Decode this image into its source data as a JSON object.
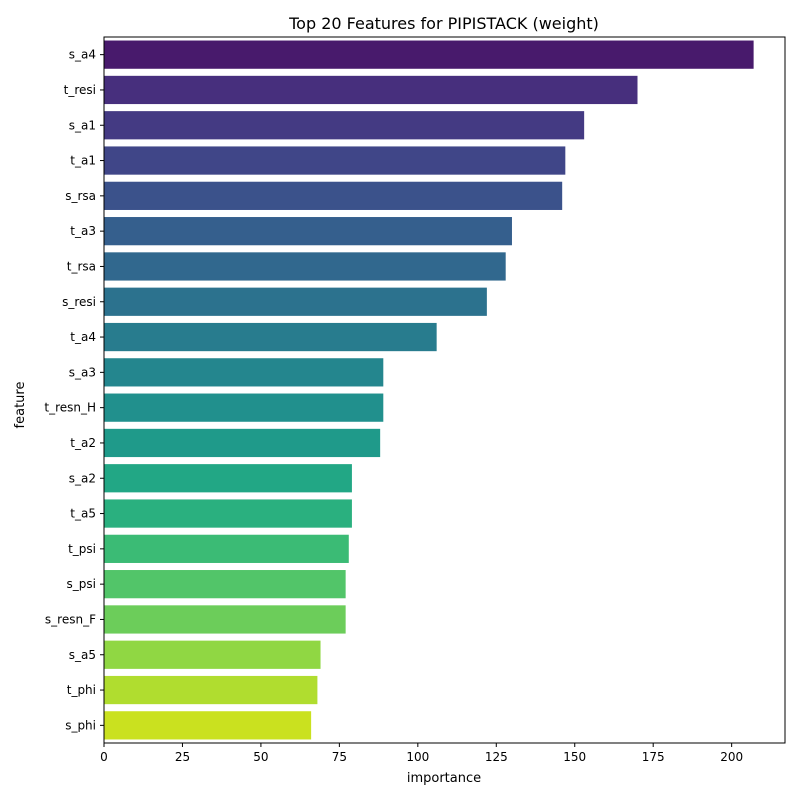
{
  "chart_data": {
    "type": "bar",
    "orientation": "horizontal",
    "title": "Top 20 Features for PIPISTACK (weight)",
    "xlabel": "importance",
    "ylabel": "feature",
    "xlim": [
      0,
      217
    ],
    "xticks": [
      0,
      25,
      50,
      75,
      100,
      125,
      150,
      175,
      200
    ],
    "grid": false,
    "categories": [
      "s_a4",
      "t_resi",
      "s_a1",
      "t_a1",
      "s_rsa",
      "t_a3",
      "t_rsa",
      "s_resi",
      "t_a4",
      "s_a3",
      "t_resn_H",
      "t_a2",
      "s_a2",
      "t_a5",
      "t_psi",
      "s_psi",
      "s_resn_F",
      "s_a5",
      "t_phi",
      "s_phi"
    ],
    "values": [
      207,
      170,
      153,
      147,
      146,
      130,
      128,
      122,
      106,
      89,
      89,
      88,
      79,
      79,
      78,
      77,
      77,
      69,
      68,
      66
    ],
    "colors": [
      "#481a6c",
      "#472f7d",
      "#443a83",
      "#404688",
      "#3b528b",
      "#355f8d",
      "#31688e",
      "#2c728e",
      "#287c8e",
      "#24868e",
      "#21908d",
      "#1f9a8a",
      "#22a785",
      "#2ab07f",
      "#3bbb75",
      "#52c569",
      "#6ccd5a",
      "#90d743",
      "#b0dd2f",
      "#cae11f"
    ]
  }
}
